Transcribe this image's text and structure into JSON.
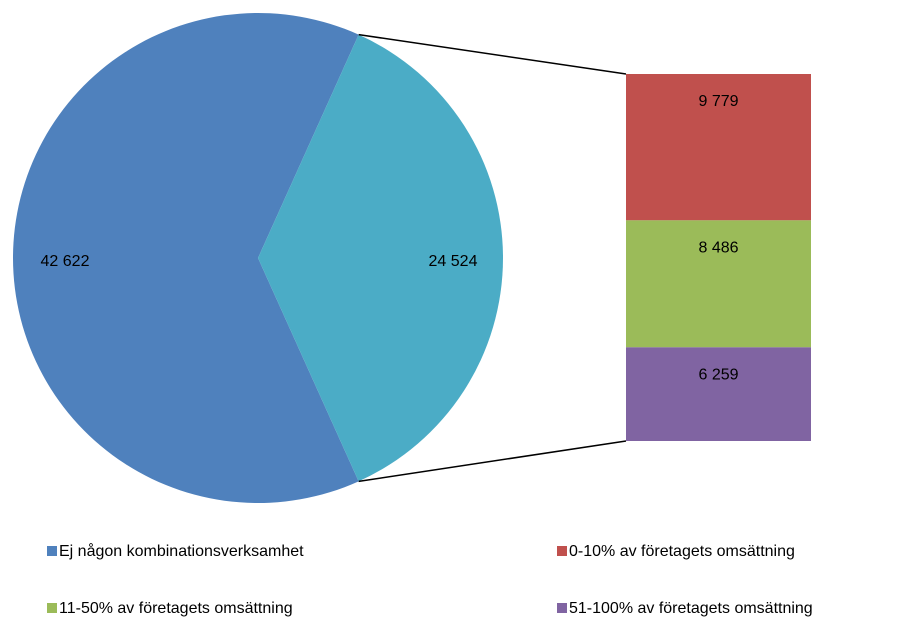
{
  "chart_data": {
    "type": "bar-of-pie",
    "categories": [
      "Ej någon kombinationsverksamhet",
      "0-10% av företagets omsättning",
      "11-50% av företagets omsättning",
      "51-100% av företagets omsättning"
    ],
    "values": [
      42622,
      9779,
      8486,
      6259
    ],
    "value_labels": [
      "42 622",
      "9 779",
      "8 486",
      "6 259"
    ],
    "colors": [
      "#4f81bd",
      "#c0504d",
      "#9bbb59",
      "#8064a2"
    ],
    "other_value": 24524,
    "other_label": "24 524",
    "other_color": "#4bacc6"
  }
}
